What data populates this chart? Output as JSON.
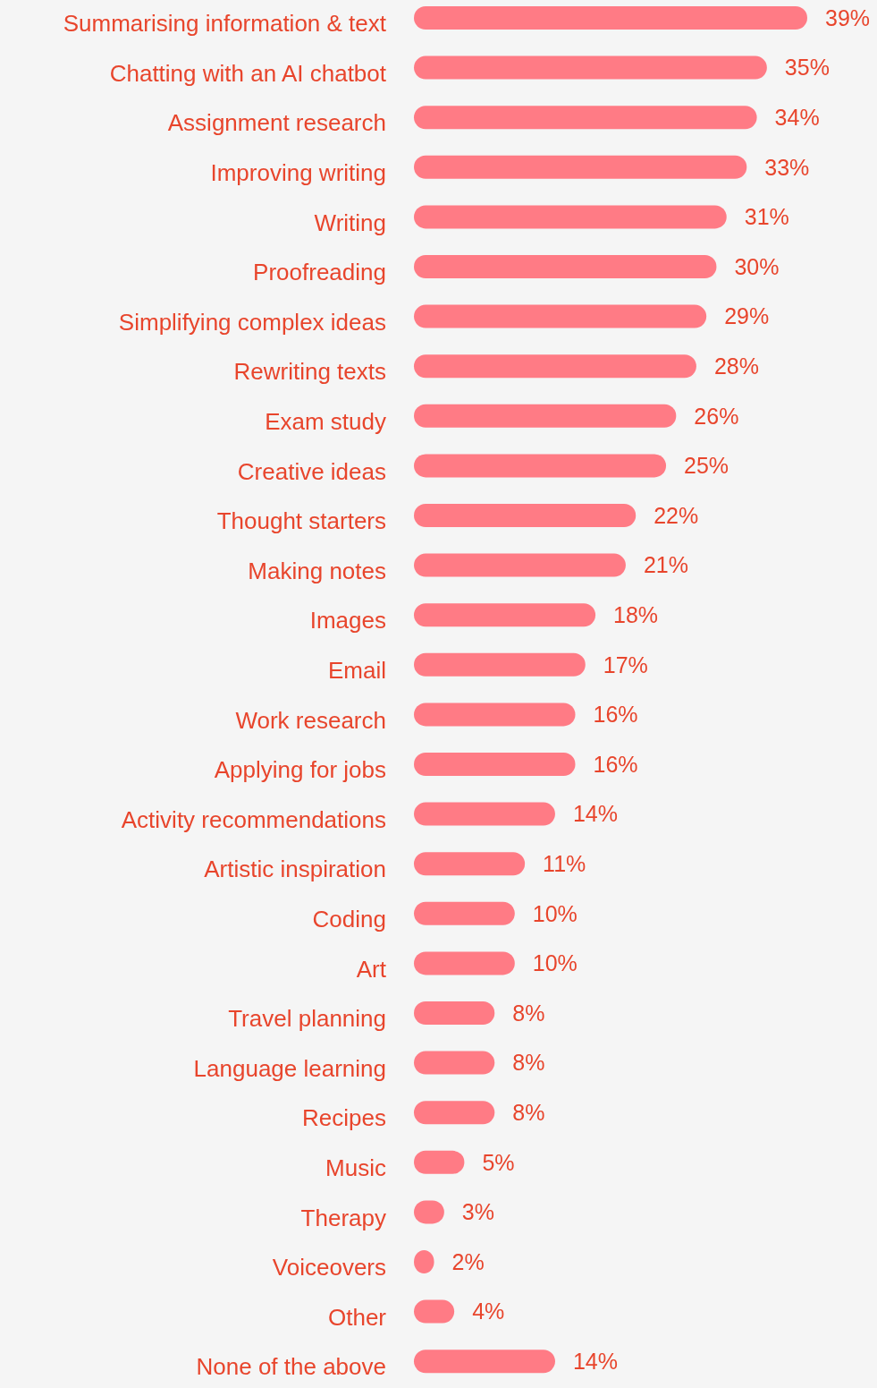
{
  "chart_data": {
    "type": "bar",
    "orientation": "horizontal",
    "categories": [
      "Summarising information & text",
      "Chatting with an AI chatbot",
      "Assignment research",
      "Improving writing",
      "Writing",
      "Proofreading",
      "Simplifying complex ideas",
      "Rewriting texts",
      "Exam study",
      "Creative ideas",
      "Thought starters",
      "Making notes",
      "Images",
      "Email",
      "Work research",
      "Applying for jobs",
      "Activity recommendations",
      "Artistic inspiration",
      "Coding",
      "Art",
      "Travel planning",
      "Language learning",
      "Recipes",
      "Music",
      "Therapy",
      "Voiceovers",
      "Other",
      "None of the above"
    ],
    "values": [
      39,
      35,
      34,
      33,
      31,
      30,
      29,
      28,
      26,
      25,
      22,
      21,
      18,
      17,
      16,
      16,
      14,
      11,
      10,
      10,
      8,
      8,
      8,
      5,
      3,
      2,
      4,
      14
    ],
    "value_labels": [
      "39%",
      "35%",
      "34%",
      "33%",
      "31%",
      "30%",
      "29%",
      "28%",
      "26%",
      "25%",
      "22%",
      "21%",
      "18%",
      "17%",
      "16%",
      "16%",
      "14%",
      "11%",
      "10%",
      "10%",
      "8%",
      "8%",
      "8%",
      "5%",
      "3%",
      "2%",
      "4%",
      "14%"
    ],
    "color": "#ff7b85"
  }
}
